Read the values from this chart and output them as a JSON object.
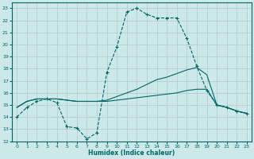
{
  "xlabel": "Humidex (Indice chaleur)",
  "background_color": "#cce8e8",
  "grid_color": "#b0c8c8",
  "line_color": "#006666",
  "xlim": [
    -0.5,
    23.5
  ],
  "ylim": [
    12,
    23.5
  ],
  "yticks": [
    12,
    13,
    14,
    15,
    16,
    17,
    18,
    19,
    20,
    21,
    22,
    23
  ],
  "xticks": [
    0,
    1,
    2,
    3,
    4,
    5,
    6,
    7,
    8,
    9,
    10,
    11,
    12,
    13,
    14,
    15,
    16,
    17,
    18,
    19,
    20,
    21,
    22,
    23
  ],
  "line1_x": [
    0,
    1,
    2,
    3,
    4,
    5,
    6,
    7,
    8,
    9,
    10,
    11,
    12,
    13,
    14,
    15,
    16,
    17,
    18,
    19,
    20,
    21,
    22,
    23
  ],
  "line1_y": [
    14.0,
    14.8,
    15.3,
    15.5,
    15.2,
    13.2,
    13.1,
    12.2,
    12.7,
    17.7,
    19.8,
    22.7,
    23.0,
    22.5,
    22.2,
    22.2,
    22.2,
    20.5,
    18.2,
    16.2,
    15.0,
    14.8,
    14.5,
    14.3
  ],
  "line2_x": [
    0,
    1,
    2,
    3,
    4,
    5,
    6,
    7,
    8,
    9,
    10,
    11,
    12,
    13,
    14,
    15,
    16,
    17,
    18,
    19,
    20,
    21,
    22,
    23
  ],
  "line2_y": [
    14.8,
    15.3,
    15.5,
    15.5,
    15.5,
    15.4,
    15.3,
    15.3,
    15.3,
    15.3,
    15.4,
    15.5,
    15.6,
    15.7,
    15.8,
    15.9,
    16.0,
    16.2,
    16.3,
    16.3,
    15.0,
    14.8,
    14.5,
    14.3
  ],
  "line3_x": [
    0,
    1,
    2,
    3,
    4,
    5,
    6,
    7,
    8,
    9,
    10,
    11,
    12,
    13,
    14,
    15,
    16,
    17,
    18,
    19,
    20,
    21,
    22,
    23
  ],
  "line3_y": [
    14.8,
    15.3,
    15.5,
    15.5,
    15.5,
    15.4,
    15.3,
    15.3,
    15.3,
    15.4,
    15.7,
    16.0,
    16.3,
    16.7,
    17.1,
    17.3,
    17.6,
    17.9,
    18.1,
    17.5,
    15.0,
    14.8,
    14.5,
    14.3
  ]
}
